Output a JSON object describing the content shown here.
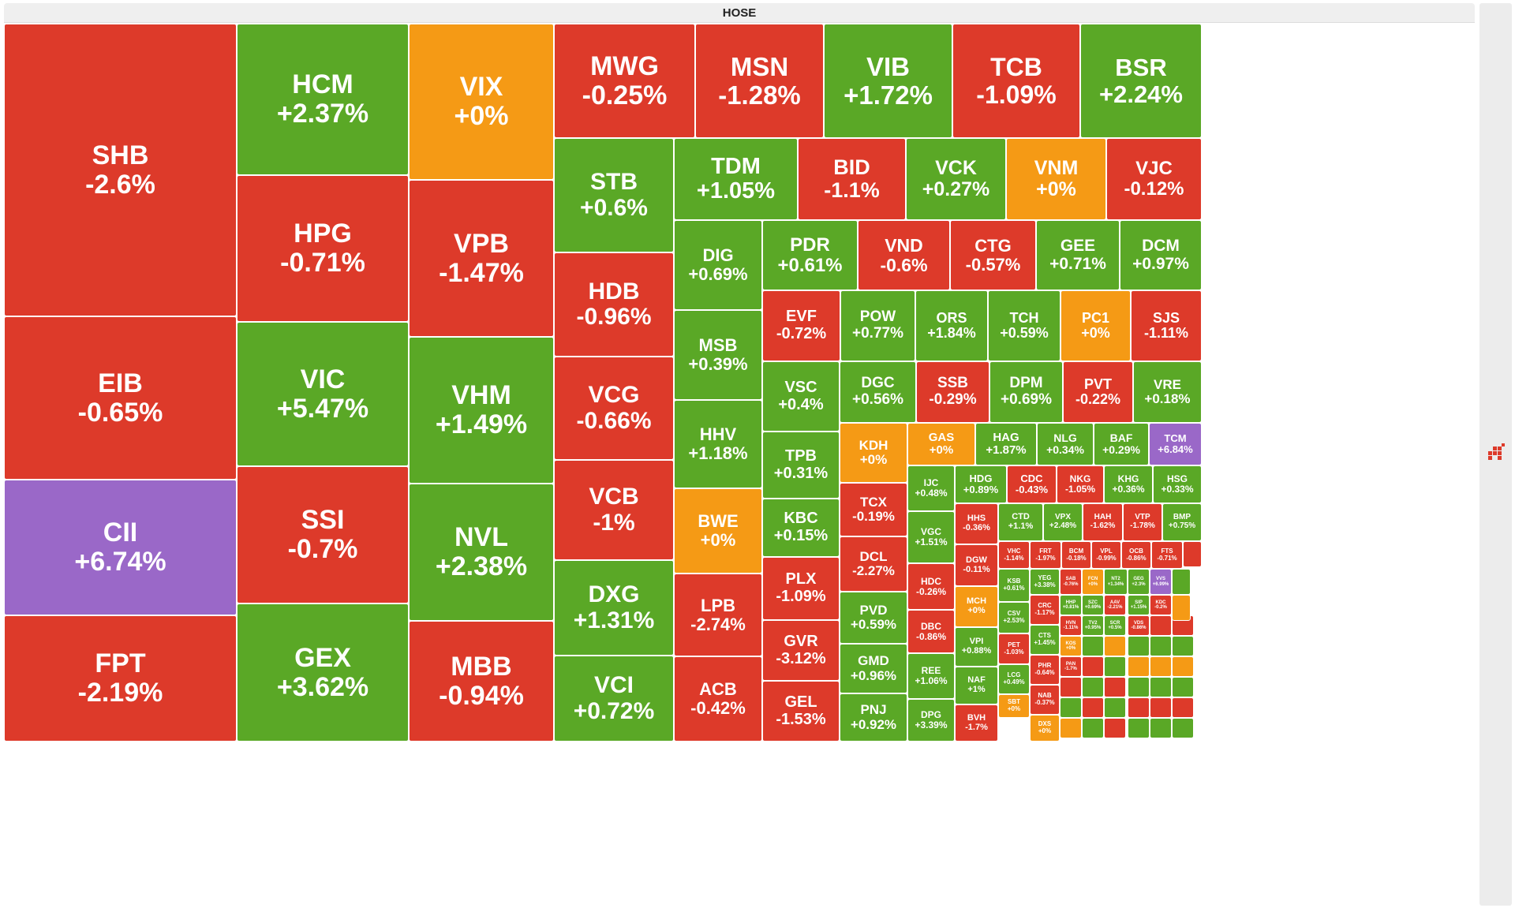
{
  "exchange": "HOSE",
  "colors": {
    "up": "#5aa826",
    "down": "#dd3a2a",
    "flat": "#f59a15",
    "ceiling": "#9a68c8"
  },
  "chart_data": {
    "type": "treemap",
    "title": "HOSE",
    "items": [
      {
        "s": "SHB",
        "c": "-2.6%"
      },
      {
        "s": "EIB",
        "c": "-0.65%"
      },
      {
        "s": "CII",
        "c": "+6.74%"
      },
      {
        "s": "FPT",
        "c": "-2.19%"
      },
      {
        "s": "HCM",
        "c": "+2.37%"
      },
      {
        "s": "HPG",
        "c": "-0.71%"
      },
      {
        "s": "VIC",
        "c": "+5.47%"
      },
      {
        "s": "SSI",
        "c": "-0.7%"
      },
      {
        "s": "GEX",
        "c": "+3.62%"
      },
      {
        "s": "VIX",
        "c": "+0%"
      },
      {
        "s": "VPB",
        "c": "-1.47%"
      },
      {
        "s": "VHM",
        "c": "+1.49%"
      },
      {
        "s": "NVL",
        "c": "+2.38%"
      },
      {
        "s": "MBB",
        "c": "-0.94%"
      },
      {
        "s": "MWG",
        "c": "-0.25%"
      },
      {
        "s": "MSN",
        "c": "-1.28%"
      },
      {
        "s": "VIB",
        "c": "+1.72%"
      },
      {
        "s": "TCB",
        "c": "-1.09%"
      },
      {
        "s": "BSR",
        "c": "+2.24%"
      },
      {
        "s": "STB",
        "c": "+0.6%"
      },
      {
        "s": "HDB",
        "c": "-0.96%"
      },
      {
        "s": "VCG",
        "c": "-0.66%"
      },
      {
        "s": "VCB",
        "c": "-1%"
      },
      {
        "s": "DXG",
        "c": "+1.31%"
      },
      {
        "s": "VCI",
        "c": "+0.72%"
      },
      {
        "s": "TDM",
        "c": "+1.05%"
      },
      {
        "s": "BID",
        "c": "-1.1%"
      },
      {
        "s": "VCK",
        "c": "+0.27%"
      },
      {
        "s": "VNM",
        "c": "+0%"
      },
      {
        "s": "VJC",
        "c": "-0.12%"
      },
      {
        "s": "DIG",
        "c": "+0.69%"
      },
      {
        "s": "MSB",
        "c": "+0.39%"
      },
      {
        "s": "HHV",
        "c": "+1.18%"
      },
      {
        "s": "BWE",
        "c": "+0%"
      },
      {
        "s": "LPB",
        "c": "-2.74%"
      },
      {
        "s": "ACB",
        "c": "-0.42%"
      },
      {
        "s": "PDR",
        "c": "+0.61%"
      },
      {
        "s": "VND",
        "c": "-0.6%"
      },
      {
        "s": "CTG",
        "c": "-0.57%"
      },
      {
        "s": "GEE",
        "c": "+0.71%"
      },
      {
        "s": "DCM",
        "c": "+0.97%"
      },
      {
        "s": "EVF",
        "c": "-0.72%"
      },
      {
        "s": "POW",
        "c": "+0.77%"
      },
      {
        "s": "ORS",
        "c": "+1.84%"
      },
      {
        "s": "TCH",
        "c": "+0.59%"
      },
      {
        "s": "PC1",
        "c": "+0%"
      },
      {
        "s": "SJS",
        "c": "-1.11%"
      },
      {
        "s": "VSC",
        "c": "+0.4%"
      },
      {
        "s": "DGC",
        "c": "+0.56%"
      },
      {
        "s": "SSB",
        "c": "-0.29%"
      },
      {
        "s": "DPM",
        "c": "+0.69%"
      },
      {
        "s": "PVT",
        "c": "-0.22%"
      },
      {
        "s": "VRE",
        "c": "+0.18%"
      },
      {
        "s": "TPB",
        "c": "+0.31%"
      },
      {
        "s": "KBC",
        "c": "+0.15%"
      },
      {
        "s": "PLX",
        "c": "-1.09%"
      },
      {
        "s": "GVR",
        "c": "-3.12%"
      },
      {
        "s": "GEL",
        "c": "-1.53%"
      },
      {
        "s": "KDH",
        "c": "+0%"
      },
      {
        "s": "GAS",
        "c": "+0%"
      },
      {
        "s": "HAG",
        "c": "+1.87%"
      },
      {
        "s": "NLG",
        "c": "+0.34%"
      },
      {
        "s": "BAF",
        "c": "+0.29%"
      },
      {
        "s": "TCM",
        "c": "+6.84%"
      },
      {
        "s": "TCX",
        "c": "-0.19%"
      },
      {
        "s": "DCL",
        "c": "-2.27%"
      },
      {
        "s": "PVD",
        "c": "+0.59%"
      },
      {
        "s": "GMD",
        "c": "+0.96%"
      },
      {
        "s": "PNJ",
        "c": "+0.92%"
      },
      {
        "s": "IJC",
        "c": "+0.48%"
      },
      {
        "s": "VGC",
        "c": "+1.51%"
      },
      {
        "s": "HDC",
        "c": "-0.26%"
      },
      {
        "s": "DBC",
        "c": "-0.86%"
      },
      {
        "s": "REE",
        "c": "+1.06%"
      },
      {
        "s": "DPG",
        "c": "+3.39%"
      },
      {
        "s": "HDG",
        "c": "+0.89%"
      },
      {
        "s": "CDC",
        "c": "-0.43%"
      },
      {
        "s": "NKG",
        "c": "-1.05%"
      },
      {
        "s": "KHG",
        "c": "+0.36%"
      },
      {
        "s": "HSG",
        "c": "+0.33%"
      },
      {
        "s": "HHS",
        "c": "-0.36%"
      },
      {
        "s": "DGW",
        "c": "-0.11%"
      },
      {
        "s": "MCH",
        "c": "+0%"
      },
      {
        "s": "VPI",
        "c": "+0.88%"
      },
      {
        "s": "NAF",
        "c": "+1%"
      },
      {
        "s": "BVH",
        "c": "-1.7%"
      },
      {
        "s": "CTD",
        "c": "+1.1%"
      },
      {
        "s": "VPX",
        "c": "+2.48%"
      },
      {
        "s": "HAH",
        "c": "-1.62%"
      },
      {
        "s": "VTP",
        "c": "-1.78%"
      },
      {
        "s": "BMP",
        "c": "+0.75%"
      },
      {
        "s": "VHC",
        "c": "-1.14%"
      },
      {
        "s": "FRT",
        "c": "-1.97%"
      },
      {
        "s": "BCM",
        "c": "-0.18%"
      },
      {
        "s": "VPL",
        "c": "-0.99%"
      },
      {
        "s": "OCB",
        "c": "-0.86%"
      },
      {
        "s": "FTS",
        "c": "-0.71%"
      },
      {
        "s": "KSB",
        "c": "+0.61%"
      },
      {
        "s": "CSV",
        "c": "+2.53%"
      },
      {
        "s": "PET",
        "c": "-1.03%"
      },
      {
        "s": "LCG",
        "c": "+0.49%"
      },
      {
        "s": "SBT",
        "c": "+0%"
      },
      {
        "s": "YEG",
        "c": "+3.38%"
      },
      {
        "s": "SAB",
        "c": "-0.76%"
      },
      {
        "s": "FCN",
        "c": "+0%"
      },
      {
        "s": "NT2",
        "c": "+1.34%"
      },
      {
        "s": "GEG",
        "c": "+2.3%"
      },
      {
        "s": "VVS",
        "c": "+6.99%"
      },
      {
        "s": "HHP",
        "c": "+0.81%"
      },
      {
        "s": "SZC",
        "c": "+0.69%"
      },
      {
        "s": "AAV",
        "c": "-2.21%"
      },
      {
        "s": "SIP",
        "c": "+1.15%"
      },
      {
        "s": "KDC",
        "c": "-0.2%"
      },
      {
        "s": "CRC",
        "c": "-1.17%"
      },
      {
        "s": "CTS",
        "c": "+1.45%"
      },
      {
        "s": "PHR",
        "c": "-0.64%"
      },
      {
        "s": "NAB",
        "c": "-0.37%"
      },
      {
        "s": "DXS",
        "c": "+0%"
      },
      {
        "s": "HVN",
        "c": "-1.11%"
      },
      {
        "s": "KOS",
        "c": "+0%"
      },
      {
        "s": "PAN",
        "c": "-1.7%"
      },
      {
        "s": "TV2",
        "c": "+0.95%"
      },
      {
        "s": "SCR",
        "c": "+0.5%"
      },
      {
        "s": "VDS",
        "c": "-0.86%"
      }
    ]
  },
  "icons": {
    "side_logo": "dots-cluster-logo-icon"
  }
}
